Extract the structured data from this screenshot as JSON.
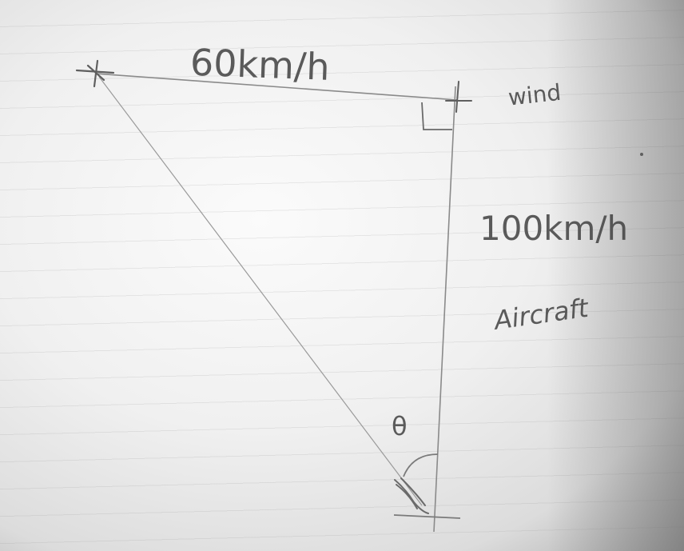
{
  "labels": {
    "top_side": "60km/h",
    "wind": "wind",
    "right_side": "100km/h",
    "right_side_caption": "Aircraft",
    "angle": "θ"
  }
}
